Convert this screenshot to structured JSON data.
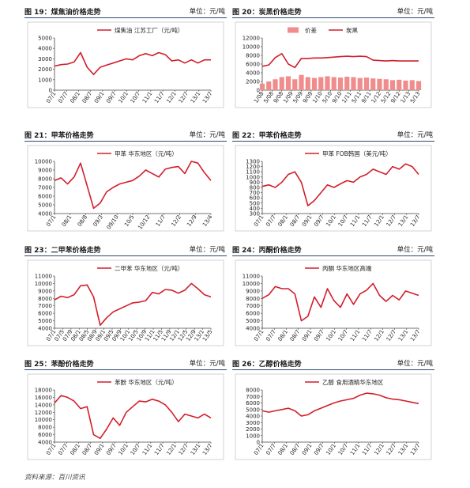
{
  "source": "资料来源：百川资讯",
  "chart_data": [
    {
      "id": "c19",
      "type": "line",
      "title": "图 19：煤焦油价格走势",
      "unit": "单位：元/吨",
      "legend": [
        "煤焦油 江苏工厂（元/吨）"
      ],
      "x_labels": [
        "07/1",
        "07/7",
        "08/1",
        "08/7",
        "09/1",
        "09/7",
        "10/1",
        "10/7",
        "11/1",
        "11/7",
        "12/1",
        "12/7",
        "13/1",
        "13/7"
      ],
      "ylim": [
        0,
        5000
      ],
      "yticks": [
        0,
        1000,
        2000,
        3000,
        4000,
        5000
      ],
      "series": [
        {
          "name": "煤焦油 江苏工厂（元/吨）",
          "color": "#d21e2b",
          "kind": "line",
          "values": [
            2300,
            2450,
            2500,
            2700,
            3600,
            2200,
            1500,
            2200,
            2400,
            2600,
            2800,
            3000,
            2900,
            3300,
            3500,
            3300,
            3600,
            3400,
            2800,
            2900,
            2600,
            2900,
            2600,
            2900,
            2900
          ]
        }
      ]
    },
    {
      "id": "c20",
      "type": "area+line",
      "title": "图 20：炭黑价格走势",
      "unit": "单位：元/吨",
      "legend": [
        "价差",
        "炭黑"
      ],
      "x_labels": [
        "1/08",
        "5/08",
        "9/08",
        "1/09",
        "5/09",
        "9/09",
        "1/10",
        "5/10",
        "9/10",
        "1/11",
        "5/11",
        "9/11",
        "1/12",
        "5/12",
        "9/12",
        "1/13",
        "5/13"
      ],
      "ylim": [
        0,
        12000
      ],
      "yticks": [
        0,
        2000,
        4000,
        6000,
        8000,
        10000,
        12000
      ],
      "series": [
        {
          "name": "炭黑",
          "color": "#d21e2b",
          "kind": "line",
          "values": [
            5500,
            5800,
            7500,
            8400,
            6000,
            5200,
            7300,
            7300,
            7400,
            7400,
            7500,
            7600,
            7700,
            7800,
            7700,
            7800,
            7700,
            6900,
            6800,
            6700,
            6800,
            6700,
            6700,
            6700,
            6700
          ]
        },
        {
          "name": "价差",
          "color": "#f08c8c",
          "kind": "area",
          "values": [
            1500,
            2000,
            2500,
            3000,
            3200,
            2500,
            3500,
            3000,
            2800,
            3000,
            3200,
            3000,
            2900,
            3100,
            3000,
            2800,
            2900,
            2700,
            2600,
            2500,
            2300,
            2400,
            2200,
            2300,
            2100
          ]
        }
      ]
    },
    {
      "id": "c21",
      "type": "line",
      "title": "图 21：甲苯价格走势",
      "unit": "单位：元/吨",
      "legend": [
        "甲苯 华东地区（元/吨）"
      ],
      "x_labels": [
        "07/1",
        "08/1",
        "08/8",
        "09/3",
        "09/10",
        "10/5",
        "10/12",
        "11/7",
        "12/2",
        "12/9",
        "13/4"
      ],
      "ylim": [
        4000,
        10000
      ],
      "yticks": [
        4000,
        5000,
        6000,
        7000,
        8000,
        9000,
        10000
      ],
      "series": [
        {
          "name": "甲苯 华东地区（元/吨）",
          "color": "#d21e2b",
          "kind": "line",
          "values": [
            7800,
            8100,
            7400,
            8200,
            9800,
            7200,
            4600,
            5200,
            6500,
            7000,
            7400,
            7600,
            7800,
            8300,
            9000,
            8600,
            8200,
            9100,
            9300,
            9400,
            8600,
            10000,
            9800,
            8700,
            7800
          ]
        }
      ]
    },
    {
      "id": "c22",
      "type": "line",
      "title": "图 22：甲苯价格走势",
      "unit": "单位：元/吨",
      "legend": [
        "甲苯 FOB韩国（美元/吨）"
      ],
      "x_labels": [
        "07/1",
        "07/7",
        "08/1",
        "08/7",
        "09/1",
        "09/7",
        "10/1",
        "10/7",
        "11/1",
        "11/7",
        "12/1",
        "12/7",
        "13/1",
        "13/7"
      ],
      "ylim": [
        300,
        1300
      ],
      "yticks": [
        300,
        400,
        500,
        600,
        700,
        800,
        900,
        1000,
        1100,
        1200,
        1300
      ],
      "series": [
        {
          "name": "甲苯 FOB韩国（美元/吨）",
          "color": "#d21e2b",
          "kind": "line",
          "values": [
            820,
            850,
            800,
            900,
            1050,
            1100,
            900,
            450,
            550,
            700,
            850,
            800,
            870,
            930,
            900,
            1000,
            1050,
            1150,
            1100,
            1050,
            1200,
            1150,
            1250,
            1200,
            1050
          ]
        }
      ]
    },
    {
      "id": "c23",
      "type": "line",
      "title": "图 23：二甲苯价格走势",
      "unit": "单位：元/吨",
      "legend": [
        "二甲苯 华东地区（元/吨）"
      ],
      "x_labels": [
        "07/1",
        "07/5",
        "07/9",
        "08/1",
        "08/5",
        "08/9",
        "09/1",
        "09/5",
        "09/9",
        "10/1",
        "10/5",
        "10/9",
        "11/1",
        "11/5",
        "11/9",
        "12/1",
        "12/5",
        "12/9",
        "13/1",
        "13/5"
      ],
      "ylim": [
        4000,
        11000
      ],
      "yticks": [
        4000,
        5000,
        6000,
        7000,
        8000,
        9000,
        10000,
        11000
      ],
      "series": [
        {
          "name": "二甲苯 华东地区（元/吨）",
          "color": "#d21e2b",
          "kind": "line",
          "values": [
            7800,
            8300,
            8100,
            8500,
            9700,
            9800,
            8200,
            4400,
            5400,
            6200,
            6600,
            7000,
            7400,
            7500,
            7700,
            8800,
            8600,
            9200,
            9100,
            8700,
            9100,
            10000,
            9300,
            8500,
            8200
          ]
        }
      ]
    },
    {
      "id": "c24",
      "type": "line",
      "title": "图 24：丙酮价格走势",
      "unit": "单位：元/吨",
      "legend": [
        "丙酮 华东地区高端"
      ],
      "x_labels": [
        "07/1",
        "07/7",
        "08/1",
        "08/7",
        "09/1",
        "09/7",
        "10/1",
        "10/7",
        "11/1",
        "11/7",
        "12/1",
        "12/7",
        "13/1",
        "13/7"
      ],
      "ylim": [
        4000,
        11000
      ],
      "yticks": [
        4000,
        5000,
        6000,
        7000,
        8000,
        9000,
        10000,
        11000
      ],
      "series": [
        {
          "name": "丙酮 华东地区高端",
          "color": "#d21e2b",
          "kind": "line",
          "values": [
            8000,
            8500,
            9600,
            9300,
            9300,
            8600,
            5000,
            5600,
            8200,
            6800,
            9300,
            7700,
            6800,
            8600,
            7200,
            8600,
            9100,
            10000,
            8400,
            7600,
            8400,
            7800,
            9000,
            8700,
            8400
          ]
        }
      ]
    },
    {
      "id": "c25",
      "type": "line",
      "title": "图 25：苯酚价格走势",
      "unit": "单位：元/吨",
      "legend": [
        "苯酚 华东地区（元/吨）"
      ],
      "x_labels": [
        "07/1",
        "07/7",
        "08/1",
        "08/7",
        "09/1",
        "09/7",
        "10/1",
        "10/7",
        "11/1",
        "11/7",
        "12/1",
        "12/7",
        "13/1",
        "13/7"
      ],
      "ylim": [
        4000,
        18000
      ],
      "yticks": [
        4000,
        6000,
        8000,
        10000,
        12000,
        14000,
        16000,
        18000
      ],
      "series": [
        {
          "name": "苯酚 华东地区（元/吨）",
          "color": "#d21e2b",
          "kind": "line",
          "values": [
            14500,
            16500,
            16000,
            15000,
            13000,
            13500,
            6000,
            5000,
            7500,
            10500,
            8500,
            12000,
            13500,
            15000,
            14800,
            15500,
            15000,
            14000,
            12000,
            9500,
            11500,
            11000,
            10500,
            11500,
            10500
          ]
        }
      ]
    },
    {
      "id": "c26",
      "type": "line",
      "title": "图 26：乙醇价格走势",
      "unit": "单位：元/吨",
      "legend": [
        "乙醇 食用酒精华东地区"
      ],
      "x_labels": [
        "07/1",
        "07/7",
        "08/1",
        "08/7",
        "09/1",
        "09/7",
        "10/1",
        "10/7",
        "11/1",
        "11/7",
        "12/1",
        "12/7",
        "13/1",
        "13/7"
      ],
      "ylim": [
        0,
        8000
      ],
      "yticks": [
        0,
        1000,
        2000,
        3000,
        4000,
        5000,
        6000,
        7000,
        8000
      ],
      "series": [
        {
          "name": "乙醇 食用酒精华东地区",
          "color": "#d21e2b",
          "kind": "line",
          "values": [
            4800,
            4600,
            4800,
            5000,
            5200,
            4800,
            4000,
            4200,
            4800,
            5200,
            5600,
            6000,
            6300,
            6500,
            6700,
            7200,
            7500,
            7400,
            7200,
            6800,
            6600,
            6500,
            6300,
            6100,
            5900
          ]
        }
      ]
    }
  ]
}
